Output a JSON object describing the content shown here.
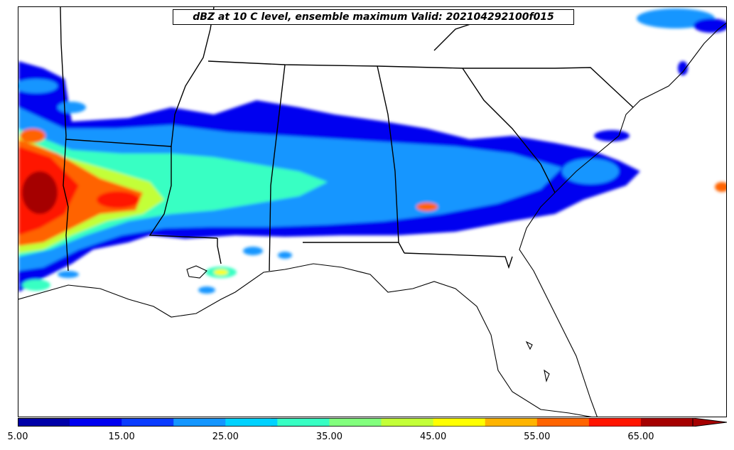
{
  "title": "dBZ at 10 C level, ensemble maximum Valid: 202104292100f015",
  "colorbar": {
    "bins": [
      5,
      10,
      15,
      20,
      25,
      30,
      35,
      40,
      45,
      50,
      55,
      60,
      65,
      70
    ],
    "colors": [
      "#0000a8",
      "#0000f0",
      "#0a3cff",
      "#1496ff",
      "#00d2ff",
      "#37ffc3",
      "#82ff7d",
      "#c3ff37",
      "#ffff00",
      "#ffb400",
      "#ff6400",
      "#ff1400",
      "#a50000"
    ],
    "extend_color": "#a50000",
    "tick_labels": [
      "5.00",
      "15.00",
      "25.00",
      "35.00",
      "45.00",
      "55.00",
      "65.00"
    ]
  },
  "map": {
    "region": "Southeastern United States",
    "features": [
      "coastlines",
      "state boundaries"
    ],
    "field": "reflectivity dBZ"
  }
}
